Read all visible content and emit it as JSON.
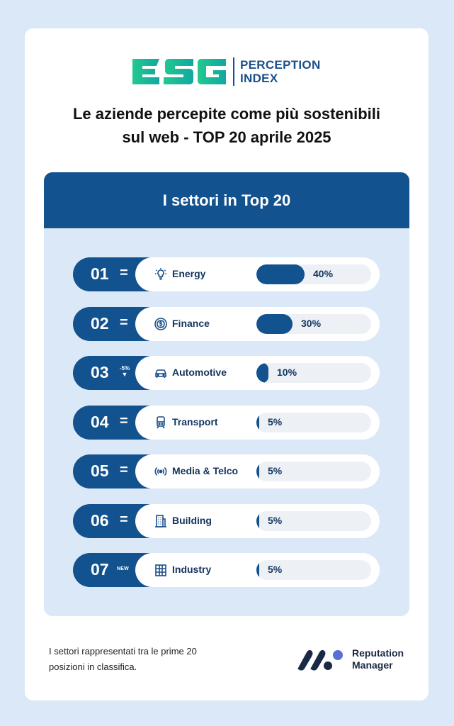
{
  "logo": {
    "mark": "ESG",
    "line1": "PERCEPTION",
    "line2": "INDEX"
  },
  "title": {
    "line1": "Le aziende percepite come più sostenibili",
    "line2": "sul web - TOP 20 aprile 2025"
  },
  "panel": {
    "heading": "I settori in Top 20"
  },
  "chart_data": {
    "type": "bar",
    "title": "I settori in Top 20",
    "categories": [
      "Energy",
      "Finance",
      "Automotive",
      "Transport",
      "Media & Telco",
      "Building",
      "Industry"
    ],
    "values": [
      40,
      30,
      10,
      5,
      5,
      5,
      5
    ],
    "value_labels": [
      "40%",
      "30%",
      "10%",
      "5%",
      "5%",
      "5%",
      "5%"
    ],
    "ranks": [
      "01",
      "02",
      "03",
      "04",
      "05",
      "06",
      "07"
    ],
    "trends": [
      "=",
      "=",
      "-5%",
      "=",
      "=",
      "=",
      "NEW"
    ],
    "icons": [
      "lightbulb-icon",
      "coin-icon",
      "car-icon",
      "train-icon",
      "signal-icon",
      "building-icon",
      "factory-icon"
    ],
    "xlim": [
      0,
      100
    ],
    "colors": {
      "bar": "#12528f",
      "track": "#edf1f6"
    }
  },
  "footnote": {
    "line1": "I settori rappresentati tra le prime 20",
    "line2": "posizioni in classifica."
  },
  "brand": {
    "line1": "Reputation",
    "line2": "Manager"
  },
  "colors": {
    "background": "#dbe8f7",
    "primary": "#12528f",
    "esg_green": "#1ec28b"
  }
}
